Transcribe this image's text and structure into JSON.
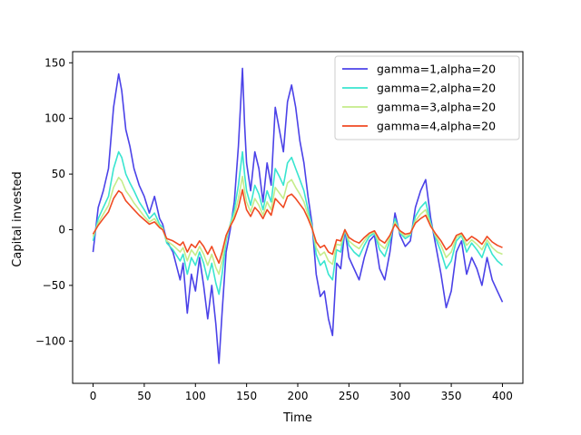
{
  "chart_data": {
    "type": "line",
    "xlabel": "Time",
    "ylabel": "Capital invested",
    "xlim": [
      -20,
      420
    ],
    "ylim": [
      -138,
      160
    ],
    "x_ticks": [
      0,
      50,
      100,
      150,
      200,
      250,
      300,
      350,
      400
    ],
    "y_ticks": [
      -100,
      -50,
      0,
      50,
      100,
      150
    ],
    "y_tick_labels": [
      "−100",
      "−50",
      "0",
      "50",
      "100",
      "150"
    ],
    "grid": false,
    "legend_position": "upper right",
    "series": [
      {
        "name": "gamma=1,alpha=20",
        "color": "#4b42e8",
        "x": [
          0,
          5,
          10,
          15,
          20,
          25,
          28,
          32,
          36,
          40,
          45,
          50,
          55,
          60,
          65,
          68,
          72,
          78,
          85,
          88,
          92,
          96,
          100,
          104,
          108,
          112,
          116,
          120,
          123,
          126,
          130,
          134,
          138,
          142,
          146,
          148,
          150,
          154,
          158,
          162,
          166,
          170,
          174,
          178,
          182,
          186,
          190,
          194,
          198,
          202,
          206,
          210,
          214,
          218,
          222,
          226,
          230,
          234,
          238,
          242,
          246,
          250,
          255,
          260,
          265,
          270,
          275,
          280,
          285,
          290,
          295,
          300,
          305,
          310,
          315,
          320,
          325,
          330,
          335,
          340,
          345,
          350,
          355,
          360,
          365,
          370,
          375,
          380,
          385,
          390,
          395,
          400
        ],
        "values": [
          -20,
          20,
          35,
          55,
          110,
          140,
          125,
          90,
          75,
          55,
          40,
          30,
          15,
          30,
          10,
          5,
          -10,
          -20,
          -45,
          -30,
          -75,
          -40,
          -55,
          -25,
          -50,
          -80,
          -50,
          -85,
          -120,
          -75,
          -20,
          0,
          25,
          75,
          145,
          95,
          60,
          35,
          70,
          55,
          25,
          60,
          40,
          110,
          90,
          70,
          115,
          130,
          110,
          80,
          60,
          30,
          5,
          -40,
          -60,
          -55,
          -80,
          -95,
          -30,
          -35,
          0,
          -25,
          -35,
          -45,
          -25,
          -10,
          -5,
          -35,
          -45,
          -20,
          15,
          -5,
          -15,
          -10,
          20,
          35,
          45,
          10,
          -15,
          -40,
          -70,
          -55,
          -20,
          -10,
          -40,
          -25,
          -35,
          -50,
          -25,
          -45,
          -55,
          -65
        ]
      },
      {
        "name": "gamma=2,alpha=20",
        "color": "#39e5d0",
        "x": [
          0,
          5,
          10,
          15,
          20,
          25,
          28,
          32,
          36,
          40,
          45,
          50,
          55,
          60,
          65,
          68,
          72,
          78,
          85,
          88,
          92,
          96,
          100,
          104,
          108,
          112,
          116,
          120,
          123,
          126,
          130,
          134,
          138,
          142,
          146,
          148,
          150,
          154,
          158,
          162,
          166,
          170,
          174,
          178,
          182,
          186,
          190,
          194,
          198,
          202,
          206,
          210,
          214,
          218,
          222,
          226,
          230,
          234,
          238,
          242,
          246,
          250,
          255,
          260,
          265,
          270,
          275,
          280,
          285,
          290,
          295,
          300,
          305,
          310,
          315,
          320,
          325,
          330,
          335,
          340,
          345,
          350,
          355,
          360,
          365,
          370,
          375,
          380,
          385,
          390,
          395,
          400
        ],
        "values": [
          -10,
          10,
          20,
          30,
          55,
          70,
          65,
          50,
          42,
          35,
          25,
          18,
          10,
          15,
          5,
          2,
          -12,
          -18,
          -28,
          -22,
          -40,
          -25,
          -32,
          -20,
          -30,
          -45,
          -30,
          -48,
          -58,
          -40,
          -10,
          5,
          18,
          40,
          70,
          50,
          35,
          22,
          40,
          32,
          18,
          35,
          25,
          55,
          48,
          40,
          60,
          65,
          55,
          45,
          35,
          18,
          3,
          -22,
          -32,
          -28,
          -40,
          -45,
          -18,
          -20,
          0,
          -14,
          -20,
          -24,
          -14,
          -6,
          -3,
          -18,
          -24,
          -10,
          10,
          -3,
          -8,
          -5,
          12,
          20,
          25,
          6,
          -8,
          -20,
          -35,
          -28,
          -10,
          -5,
          -20,
          -12,
          -18,
          -25,
          -12,
          -22,
          -28,
          -32
        ]
      },
      {
        "name": "gamma=3,alpha=20",
        "color": "#c5ec8a",
        "x": [
          0,
          5,
          10,
          15,
          20,
          25,
          28,
          32,
          36,
          40,
          45,
          50,
          55,
          60,
          65,
          68,
          72,
          78,
          85,
          88,
          92,
          96,
          100,
          104,
          108,
          112,
          116,
          120,
          123,
          126,
          130,
          134,
          138,
          142,
          146,
          148,
          150,
          154,
          158,
          162,
          166,
          170,
          174,
          178,
          182,
          186,
          190,
          194,
          198,
          202,
          206,
          210,
          214,
          218,
          222,
          226,
          230,
          234,
          238,
          242,
          246,
          250,
          255,
          260,
          265,
          270,
          275,
          280,
          285,
          290,
          295,
          300,
          305,
          310,
          315,
          320,
          325,
          330,
          335,
          340,
          345,
          350,
          355,
          360,
          365,
          370,
          375,
          380,
          385,
          390,
          395,
          400
        ],
        "values": [
          -6,
          6,
          14,
          22,
          38,
          47,
          44,
          35,
          30,
          24,
          18,
          12,
          7,
          10,
          3,
          1,
          -10,
          -14,
          -20,
          -16,
          -28,
          -18,
          -23,
          -15,
          -22,
          -32,
          -22,
          -34,
          -40,
          -28,
          -7,
          4,
          13,
          28,
          48,
          35,
          25,
          16,
          28,
          22,
          13,
          25,
          18,
          38,
          33,
          28,
          42,
          45,
          38,
          32,
          25,
          13,
          2,
          -16,
          -23,
          -20,
          -28,
          -31,
          -13,
          -14,
          0,
          -10,
          -14,
          -17,
          -10,
          -4,
          -2,
          -13,
          -17,
          -7,
          7,
          -2,
          -6,
          -4,
          8,
          14,
          18,
          4,
          -6,
          -14,
          -25,
          -20,
          -7,
          -4,
          -14,
          -9,
          -13,
          -18,
          -9,
          -16,
          -20,
          -22
        ]
      },
      {
        "name": "gamma=4,alpha=20",
        "color": "#f04a22",
        "x": [
          0,
          5,
          10,
          15,
          20,
          25,
          28,
          32,
          36,
          40,
          45,
          50,
          55,
          60,
          65,
          68,
          72,
          78,
          85,
          88,
          92,
          96,
          100,
          104,
          108,
          112,
          116,
          120,
          123,
          126,
          130,
          134,
          138,
          142,
          146,
          148,
          150,
          154,
          158,
          162,
          166,
          170,
          174,
          178,
          182,
          186,
          190,
          194,
          198,
          202,
          206,
          210,
          214,
          218,
          222,
          226,
          230,
          234,
          238,
          242,
          246,
          250,
          255,
          260,
          265,
          270,
          275,
          280,
          285,
          290,
          295,
          300,
          305,
          310,
          315,
          320,
          325,
          330,
          335,
          340,
          345,
          350,
          355,
          360,
          365,
          370,
          375,
          380,
          385,
          390,
          395,
          400
        ],
        "values": [
          -4,
          4,
          10,
          16,
          28,
          35,
          33,
          26,
          22,
          18,
          13,
          9,
          5,
          7,
          2,
          0,
          -8,
          -10,
          -14,
          -11,
          -20,
          -13,
          -16,
          -10,
          -15,
          -22,
          -15,
          -24,
          -30,
          -20,
          -5,
          3,
          10,
          20,
          36,
          26,
          18,
          12,
          20,
          16,
          10,
          18,
          13,
          28,
          24,
          20,
          30,
          32,
          28,
          23,
          18,
          10,
          1,
          -11,
          -16,
          -14,
          -20,
          -22,
          -9,
          -10,
          0,
          -7,
          -10,
          -12,
          -7,
          -3,
          -1,
          -9,
          -12,
          -5,
          5,
          -1,
          -4,
          -3,
          6,
          10,
          13,
          3,
          -4,
          -10,
          -18,
          -14,
          -5,
          -3,
          -10,
          -6,
          -9,
          -13,
          -6,
          -11,
          -14,
          -16
        ]
      }
    ]
  }
}
